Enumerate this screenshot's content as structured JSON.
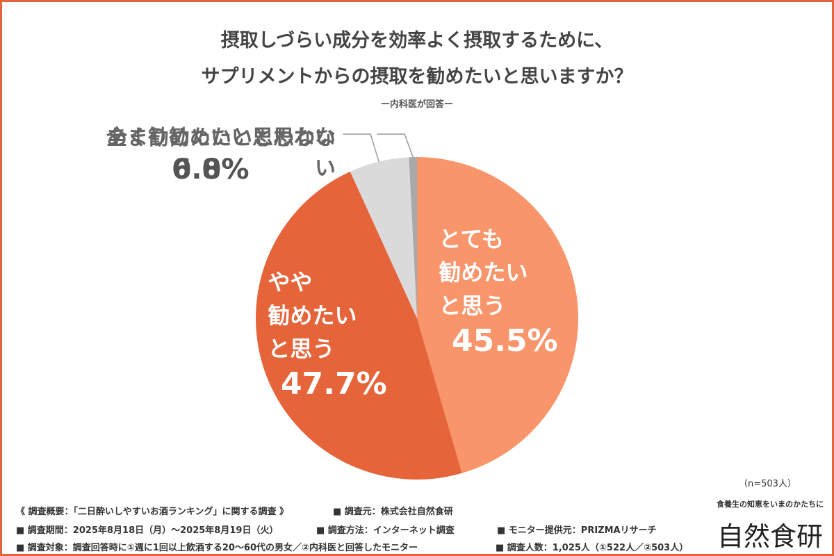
{
  "chart_data": {
    "type": "pie",
    "title": "摂取しづらい成分を効率よく摂取するために、\nサプリメントからの摂取を勧めたいと思いますか？",
    "subtitle": "ー内科医が回答ー",
    "categories": [
      "とても\n勧めたい\nと思う",
      "やや\n勧めたい\nと思う",
      "あまり勧めたいと思わない",
      "全く勧めたいと思わない"
    ],
    "values": [
      45.5,
      47.7,
      6.0,
      0.8
    ],
    "value_labels": [
      "45.5%",
      "47.7%",
      "6.0%",
      "0.8%"
    ],
    "colors": [
      "#f9956b",
      "#e5643a",
      "#dadada",
      "#a9a9a9"
    ],
    "sample_note": "（n=503人）"
  },
  "footer": {
    "rows": [
      [
        "《 調査概要：「二日酔いしやすいお酒ランキング」に関する調査 》",
        "■ 調査元：株式会社自然食研"
      ],
      [
        "■ 調査期間：2025年8月18日（月）～2025年8月19日（火）",
        "■ 調査方法：インターネット調査",
        "■ モニター提供元：PRIZMAリサーチ"
      ],
      [
        "■ 調査対象：調査回答時に①週に1回以上飲酒する20～60代の男女／②内科医と回答したモニター",
        "■ 調査人数：1,025人（①522人／②503人）"
      ]
    ]
  },
  "logo": {
    "tagline": "食養生の知恵をいまのかたちに",
    "name": "自然食研"
  }
}
